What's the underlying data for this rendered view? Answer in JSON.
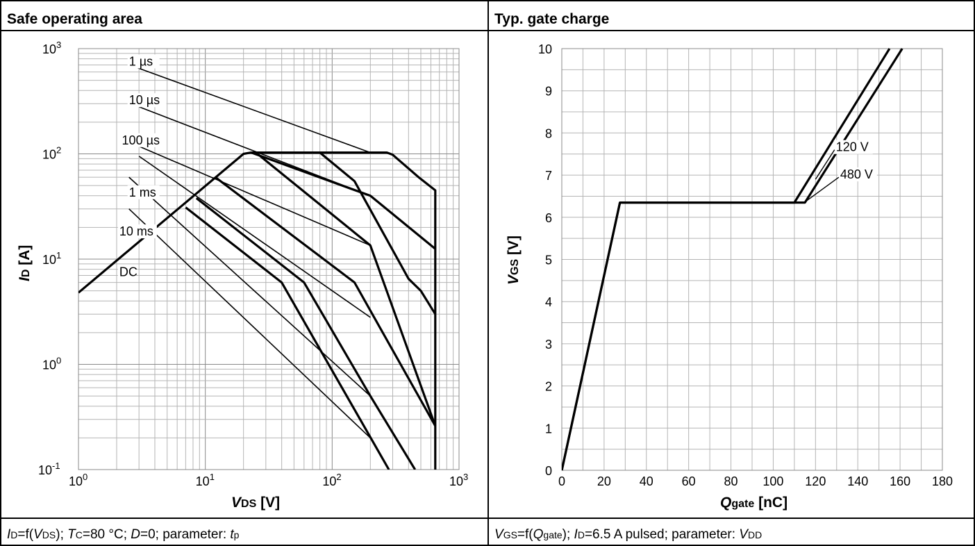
{
  "panels": {
    "left": {
      "header": "Safe operating area",
      "footer_parts": [
        {
          "t": "I",
          "i": true
        },
        {
          "t": "D",
          "sub": true
        },
        {
          "t": "=f("
        },
        {
          "t": "V",
          "i": true
        },
        {
          "t": "DS",
          "sub": true
        },
        {
          "t": "); "
        },
        {
          "t": "T",
          "i": true
        },
        {
          "t": "C",
          "sub": true
        },
        {
          "t": "=80 °C; "
        },
        {
          "t": "D",
          "i": true
        },
        {
          "t": "=0; parameter: "
        },
        {
          "t": "t",
          "i": true
        },
        {
          "t": "p",
          "sub": true
        }
      ]
    },
    "right": {
      "header": "Typ. gate charge",
      "footer_parts": [
        {
          "t": "V",
          "i": true
        },
        {
          "t": "GS",
          "sub": true
        },
        {
          "t": "=f("
        },
        {
          "t": "Q",
          "i": true
        },
        {
          "t": "gate",
          "sub": true
        },
        {
          "t": "); "
        },
        {
          "t": "I",
          "i": true
        },
        {
          "t": "D",
          "sub": true
        },
        {
          "t": "=6.5 A pulsed; parameter: "
        },
        {
          "t": "V",
          "i": true
        },
        {
          "t": "DD",
          "sub": true
        }
      ]
    }
  },
  "chart_data": [
    {
      "type": "line",
      "x_scale": "log",
      "y_scale": "log",
      "xlim": [
        1,
        1000
      ],
      "ylim": [
        0.1,
        1000
      ],
      "xticks": [
        {
          "base": "10",
          "exp": "0"
        },
        {
          "base": "10",
          "exp": "1"
        },
        {
          "base": "10",
          "exp": "2"
        },
        {
          "base": "10",
          "exp": "3"
        }
      ],
      "yticks": [
        {
          "base": "10",
          "exp": "-1"
        },
        {
          "base": "10",
          "exp": "0"
        },
        {
          "base": "10",
          "exp": "1"
        },
        {
          "base": "10",
          "exp": "2"
        },
        {
          "base": "10",
          "exp": "3"
        }
      ],
      "xlabel": {
        "main": "V",
        "sub": "DS",
        "unit": " [V]"
      },
      "ylabel": {
        "main": "I",
        "sub": "D",
        "unit": " [A]"
      },
      "grid": true,
      "series": [
        {
          "name": "1 µs",
          "label_at": [
            2.5,
            700
          ],
          "thin": [
            [
              2.7,
              680
            ],
            [
              200,
              103
            ]
          ],
          "thick": [
            [
              23,
              103
            ],
            [
              270,
              103
            ],
            [
              300,
              98
            ],
            [
              480,
              60
            ],
            [
              650,
              45
            ],
            [
              650,
              0.1
            ]
          ]
        },
        {
          "name": "10 µs",
          "label_at": [
            2.5,
            300
          ],
          "thin": [
            [
              3.0,
              280
            ],
            [
              200,
              40
            ]
          ],
          "thick": [
            [
              23,
              103
            ],
            [
              200,
              40
            ],
            [
              650,
              12.5
            ]
          ]
        },
        {
          "name": "100 µs",
          "label_at": [
            2.2,
            125
          ],
          "thin": [
            [
              3.0,
              118
            ],
            [
              200,
              13.5
            ]
          ],
          "thick": [
            [
              23,
              103
            ],
            [
              80,
              103
            ],
            [
              150,
              55
            ],
            [
              400,
              6.5
            ],
            [
              500,
              5
            ],
            [
              650,
              3
            ]
          ]
        },
        {
          "name": "1 ms",
          "label_at": [
            2.5,
            40
          ],
          "thin": [
            [
              3.0,
              95
            ],
            [
              200,
              2.8
            ]
          ],
          "thick": [
            [
              25,
              103
            ],
            [
              200,
              13.5
            ],
            [
              650,
              0.26
            ]
          ]
        },
        {
          "name": "10 ms",
          "label_at": [
            2.1,
            17
          ],
          "thin": [
            [
              2.5,
              60
            ],
            [
              200,
              0.5
            ]
          ],
          "thick": [
            [
              12,
              60
            ],
            [
              150,
              6
            ],
            [
              650,
              0.26
            ]
          ]
        },
        {
          "name": "DC",
          "label_at": [
            2.1,
            7
          ],
          "thin": [
            [
              2.5,
              30
            ],
            [
              200,
              0.2
            ]
          ],
          "thick": [
            [
              8.5,
              38
            ],
            [
              60,
              6
            ],
            [
              200,
              0.5
            ],
            [
              450,
              0.1
            ]
          ]
        },
        {
          "name": "",
          "label_at": null,
          "thin": [],
          "thick": [
            [
              1,
              4.8
            ],
            [
              20,
              100
            ],
            [
              23,
              103
            ]
          ]
        },
        {
          "name": "",
          "label_at": null,
          "thin": [],
          "thick": [
            [
              7,
              31
            ],
            [
              40,
              6
            ],
            [
              280,
              0.1
            ]
          ]
        }
      ]
    },
    {
      "type": "line",
      "xlim": [
        0,
        180
      ],
      "ylim": [
        0,
        10
      ],
      "xticks": [
        "0",
        "20",
        "40",
        "60",
        "80",
        "100",
        "120",
        "140",
        "160",
        "180"
      ],
      "yticks": [
        "0",
        "1",
        "2",
        "3",
        "4",
        "5",
        "6",
        "7",
        "8",
        "9",
        "10"
      ],
      "xlabel": {
        "main": "Q",
        "sub": "gate",
        "unit": " [nC]"
      },
      "ylabel": {
        "main": "V",
        "sub": "GS",
        "unit": " [V]"
      },
      "grid": true,
      "series": [
        {
          "name": "120 V",
          "points": [
            [
              0,
              0
            ],
            [
              27.5,
              6.35
            ],
            [
              110,
              6.35
            ],
            [
              155,
              10
            ]
          ],
          "label_at": [
            129,
            7.6
          ]
        },
        {
          "name": "480 V",
          "points": [
            [
              0,
              0
            ],
            [
              27.5,
              6.35
            ],
            [
              115,
              6.35
            ],
            [
              161,
              10
            ]
          ],
          "label_at": [
            131,
            6.95
          ]
        }
      ]
    }
  ]
}
